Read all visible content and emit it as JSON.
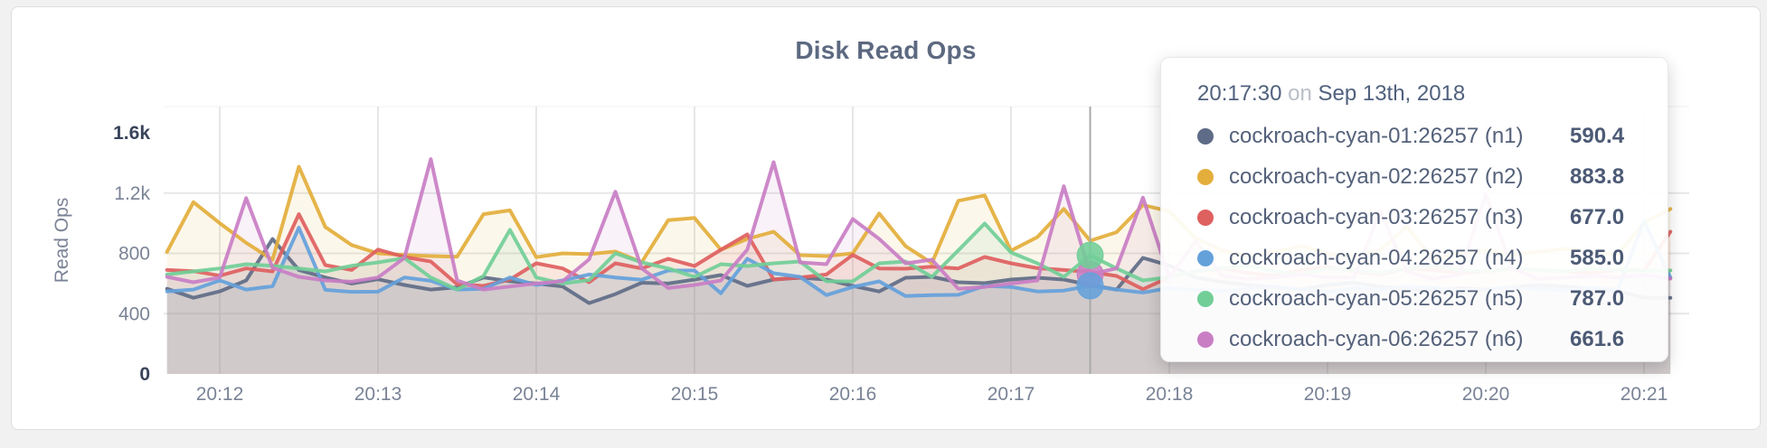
{
  "card": {
    "background": "#ffffff",
    "border": "#dedede"
  },
  "chart": {
    "title": "Disk Read Ops",
    "grid_color": "#e7e7e7",
    "hover_line_color": "#aaaaaa"
  },
  "chart_data": {
    "type": "line",
    "title": "Disk Read Ops",
    "xlabel": "",
    "ylabel": "Read Ops",
    "ylim": [
      0,
      1600
    ],
    "grid": true,
    "legend_position": "tooltip",
    "y_ticks": [
      {
        "label": "1.6k",
        "value": 1600,
        "strong": true,
        "gridline": false
      },
      {
        "label": "1.2k",
        "value": 1200,
        "strong": false,
        "gridline": true
      },
      {
        "label": "800",
        "value": 800,
        "strong": false,
        "gridline": true
      },
      {
        "label": "400",
        "value": 400,
        "strong": false,
        "gridline": true
      },
      {
        "label": "0",
        "value": 0,
        "strong": true,
        "gridline": false
      }
    ],
    "x_ticks": [
      "20:12",
      "20:13",
      "20:14",
      "20:15",
      "20:16",
      "20:17",
      "20:18",
      "20:19",
      "20:20",
      "20:21"
    ],
    "x_interval_seconds": 10,
    "x": [
      "20:11:40",
      "20:11:50",
      "20:12:00",
      "20:12:10",
      "20:12:20",
      "20:12:30",
      "20:12:40",
      "20:12:50",
      "20:13:00",
      "20:13:10",
      "20:13:20",
      "20:13:30",
      "20:13:40",
      "20:13:50",
      "20:14:00",
      "20:14:10",
      "20:14:20",
      "20:14:30",
      "20:14:40",
      "20:14:50",
      "20:15:00",
      "20:15:10",
      "20:15:20",
      "20:15:30",
      "20:15:40",
      "20:15:50",
      "20:16:00",
      "20:16:10",
      "20:16:20",
      "20:16:30",
      "20:16:40",
      "20:16:50",
      "20:17:00",
      "20:17:10",
      "20:17:20",
      "20:17:30",
      "20:17:40",
      "20:17:50",
      "20:18:00",
      "20:18:10",
      "20:18:20",
      "20:18:30",
      "20:18:40",
      "20:18:50",
      "20:19:00",
      "20:19:10",
      "20:19:20",
      "20:19:30",
      "20:19:40",
      "20:19:50",
      "20:20:00",
      "20:20:10",
      "20:20:20",
      "20:20:30",
      "20:20:40",
      "20:20:50",
      "20:21:00",
      "20:21:10"
    ],
    "series": [
      {
        "name": "cockroach-cyan-01:26257 (n1)",
        "color": "#5f6c87",
        "values": [
          565,
          505,
          548,
          620,
          895,
          690,
          640,
          600,
          628,
          590,
          560,
          575,
          640,
          615,
          600,
          580,
          470,
          530,
          605,
          600,
          626,
          656,
          584,
          626,
          638,
          626,
          584,
          547,
          638,
          644,
          608,
          602,
          626,
          638,
          626,
          590.4,
          560,
          770,
          720,
          640,
          610,
          590,
          575,
          560,
          590,
          605,
          580,
          565,
          555,
          570,
          560,
          575,
          590,
          580,
          565,
          550,
          506,
          505
        ]
      },
      {
        "name": "cockroach-cyan-02:26257 (n2)",
        "color": "#e3ae3b",
        "values": [
          810,
          1140,
          1000,
          870,
          758,
          1375,
          975,
          855,
          800,
          790,
          782,
          778,
          1060,
          1085,
          775,
          800,
          795,
          812,
          742,
          1020,
          1035,
          824,
          896,
          944,
          788,
          782,
          800,
          1065,
          848,
          735,
          1149,
          1185,
          818,
          908,
          1095,
          883.8,
          940,
          1120,
          1080,
          900,
          820,
          782,
          810,
          850,
          800,
          780,
          820,
          980,
          762,
          800,
          822,
          790,
          812,
          830,
          810,
          792,
          1005,
          1095
        ]
      },
      {
        "name": "cockroach-cyan-03:26257 (n3)",
        "color": "#de605f",
        "values": [
          690,
          682,
          652,
          700,
          680,
          1060,
          722,
          690,
          825,
          776,
          746,
          595,
          584,
          626,
          734,
          700,
          608,
          734,
          700,
          764,
          716,
          824,
          926,
          626,
          640,
          660,
          790,
          700,
          698,
          712,
          700,
          776,
          734,
          702,
          690,
          677,
          650,
          562,
          642,
          680,
          700,
          670,
          652,
          690,
          710,
          680,
          660,
          700,
          690,
          670,
          680,
          700,
          690,
          680,
          670,
          690,
          686,
          944
        ]
      },
      {
        "name": "cockroach-cyan-04:26257 (n4)",
        "color": "#64a1db",
        "values": [
          548,
          560,
          620,
          560,
          582,
          970,
          558,
          545,
          546,
          640,
          618,
          560,
          565,
          640,
          590,
          620,
          660,
          640,
          625,
          686,
          686,
          535,
          764,
          668,
          644,
          523,
          577,
          614,
          517,
          523,
          525,
          584,
          577,
          547,
          553,
          585,
          560,
          540,
          570,
          558,
          550,
          565,
          580,
          560,
          545,
          570,
          560,
          580,
          570,
          555,
          560,
          575,
          565,
          555,
          570,
          560,
          1017,
          638
        ]
      },
      {
        "name": "cockroach-cyan-05:26257 (n5)",
        "color": "#71ce97",
        "values": [
          660,
          680,
          700,
          728,
          718,
          700,
          680,
          718,
          740,
          768,
          640,
          560,
          650,
          956,
          640,
          600,
          622,
          800,
          740,
          700,
          644,
          728,
          716,
          734,
          746,
          614,
          614,
          734,
          746,
          644,
          820,
          998,
          806,
          734,
          644,
          787,
          700,
          620,
          642,
          680,
          700,
          718,
          680,
          660,
          700,
          690,
          670,
          700,
          718,
          690,
          680,
          700,
          690,
          680,
          700,
          690,
          686,
          686
        ]
      },
      {
        "name": "cockroach-cyan-06:26257 (n6)",
        "color": "#c97ec4",
        "values": [
          644,
          608,
          640,
          1167,
          704,
          644,
          620,
          612,
          640,
          770,
          1425,
          620,
          560,
          580,
          600,
          615,
          760,
          1209,
          700,
          570,
          590,
          620,
          825,
          1405,
          740,
          728,
          1028,
          896,
          734,
          758,
          565,
          577,
          600,
          620,
          1245,
          661.6,
          700,
          1170,
          640,
          880,
          650,
          630,
          640,
          660,
          640,
          640,
          1080,
          680,
          630,
          660,
          1190,
          700,
          630,
          640,
          650,
          640,
          656,
          632
        ]
      }
    ]
  },
  "hover": {
    "time": "20:17:30",
    "index": 35,
    "dots": [
      {
        "series_index": 5,
        "value": 661.6
      },
      {
        "series_index": 4,
        "value": 787.0
      },
      {
        "series_index": 3,
        "value": 585.0
      }
    ]
  },
  "tooltip": {
    "time": "20:17:30",
    "separator": "on",
    "date": "Sep 13th, 2018",
    "rows": [
      {
        "label": "cockroach-cyan-01:26257 (n1)",
        "value": "590.4",
        "color": "#5f6c87"
      },
      {
        "label": "cockroach-cyan-02:26257 (n2)",
        "value": "883.8",
        "color": "#e3ae3b"
      },
      {
        "label": "cockroach-cyan-03:26257 (n3)",
        "value": "677.0",
        "color": "#de605f"
      },
      {
        "label": "cockroach-cyan-04:26257 (n4)",
        "value": "585.0",
        "color": "#64a1db"
      },
      {
        "label": "cockroach-cyan-05:26257 (n5)",
        "value": "787.0",
        "color": "#71ce97"
      },
      {
        "label": "cockroach-cyan-06:26257 (n6)",
        "value": "661.6",
        "color": "#c97ec4"
      }
    ]
  }
}
